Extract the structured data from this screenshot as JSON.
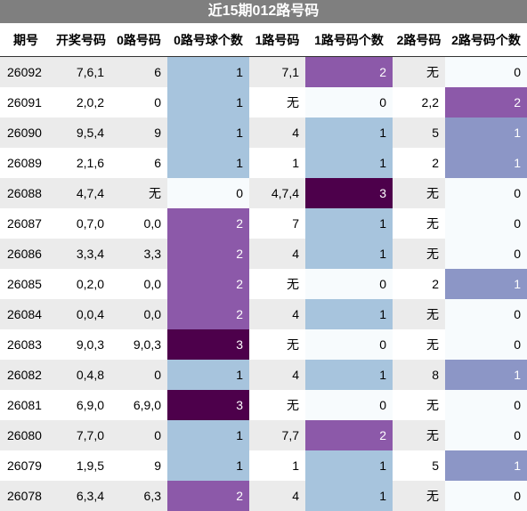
{
  "title": "近15期012路号码",
  "headers": [
    "期号",
    "开奖号码",
    "0路号码",
    "0路号球个数",
    "1路号码",
    "1路号码个数",
    "2路号码",
    "2路号码个数"
  ],
  "rows": [
    [
      "26092",
      "7,6,1",
      "6",
      "1",
      "7,1",
      "2",
      "无",
      "0"
    ],
    [
      "26091",
      "2,0,2",
      "0",
      "1",
      "无",
      "0",
      "2,2",
      "2"
    ],
    [
      "26090",
      "9,5,4",
      "9",
      "1",
      "4",
      "1",
      "5",
      "1"
    ],
    [
      "26089",
      "2,1,6",
      "6",
      "1",
      "1",
      "1",
      "2",
      "1"
    ],
    [
      "26088",
      "4,7,4",
      "无",
      "0",
      "4,7,4",
      "3",
      "无",
      "0"
    ],
    [
      "26087",
      "0,7,0",
      "0,0",
      "2",
      "7",
      "1",
      "无",
      "0"
    ],
    [
      "26086",
      "3,3,4",
      "3,3",
      "2",
      "4",
      "1",
      "无",
      "0"
    ],
    [
      "26085",
      "0,2,0",
      "0,0",
      "2",
      "无",
      "0",
      "2",
      "1"
    ],
    [
      "26084",
      "0,0,4",
      "0,0",
      "2",
      "4",
      "1",
      "无",
      "0"
    ],
    [
      "26083",
      "9,0,3",
      "9,0,3",
      "3",
      "无",
      "0",
      "无",
      "0"
    ],
    [
      "26082",
      "0,4,8",
      "0",
      "1",
      "4",
      "1",
      "8",
      "1"
    ],
    [
      "26081",
      "6,9,0",
      "6,9,0",
      "3",
      "无",
      "0",
      "无",
      "0"
    ],
    [
      "26080",
      "7,7,0",
      "0",
      "1",
      "7,7",
      "2",
      "无",
      "0"
    ],
    [
      "26079",
      "1,9,5",
      "9",
      "1",
      "1",
      "1",
      "5",
      "1"
    ],
    [
      "26078",
      "6,3,4",
      "6,3",
      "2",
      "4",
      "1",
      "无",
      "0"
    ]
  ]
}
